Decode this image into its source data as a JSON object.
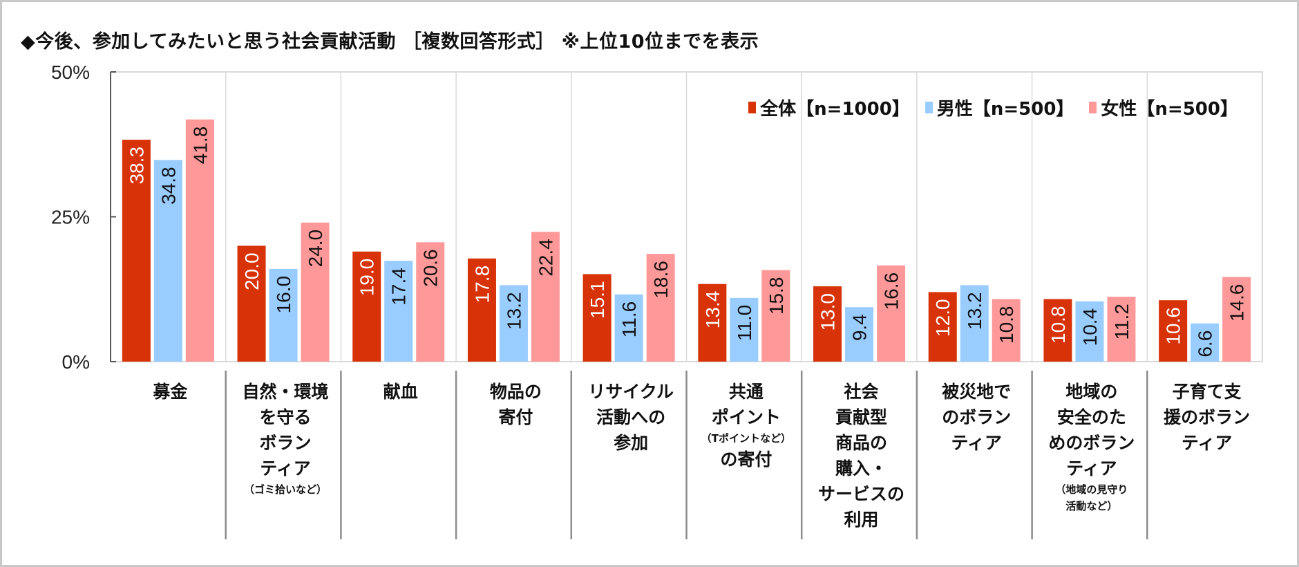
{
  "title": "◆今後、参加してみたいと思う社会貢献活動 ［複数回答形式］ ※上位10位までを表示",
  "colors": {
    "all": "#d83208",
    "male": "#99ccff",
    "female": "#ff9999"
  },
  "chart_data": {
    "type": "bar",
    "title": "◆今後、参加してみたいと思う社会貢献活動 ［複数回答形式］ ※上位10位までを表示",
    "xlabel": "",
    "ylabel": "",
    "ylim": [
      0,
      50
    ],
    "yticks": [
      0,
      25,
      50
    ],
    "ytick_labels": [
      "0%",
      "25%",
      "50%"
    ],
    "grid": "vertical category separators",
    "legend_position": "top-right",
    "categories": [
      {
        "lines": [
          "募金"
        ],
        "note": []
      },
      {
        "lines": [
          "自然・環境",
          "を守る",
          "ボラン",
          "ティア"
        ],
        "note": [
          "（ゴミ拾いなど）"
        ]
      },
      {
        "lines": [
          "献血"
        ],
        "note": []
      },
      {
        "lines": [
          "物品の",
          "寄付"
        ],
        "note": []
      },
      {
        "lines": [
          "リサイクル",
          "活動への",
          "参加"
        ],
        "note": []
      },
      {
        "lines": [
          "共通",
          "ポイント"
        ],
        "note": [
          "（Tポイントなど）"
        ],
        "after": [
          "の寄付"
        ]
      },
      {
        "lines": [
          "社会",
          "貢献型",
          "商品の",
          "購入・",
          "サービスの",
          "利用"
        ],
        "note": []
      },
      {
        "lines": [
          "被災地で",
          "のボラン",
          "ティア"
        ],
        "note": []
      },
      {
        "lines": [
          "地域の",
          "安全のた",
          "めのボラン",
          "ティア"
        ],
        "note": [
          "（地域の見守り",
          "活動など）"
        ]
      },
      {
        "lines": [
          "子育て支",
          "援のボラン",
          "ティア"
        ],
        "note": []
      }
    ],
    "series": [
      {
        "name": "全体【n=1000】",
        "key": "all",
        "values": [
          38.3,
          20.0,
          19.0,
          17.8,
          15.1,
          13.4,
          13.0,
          12.0,
          10.8,
          10.6
        ],
        "labels": [
          "38.3",
          "20.0",
          "19.0",
          "17.8",
          "15.1",
          "13.4",
          "13.0",
          "12.0",
          "10.8",
          "10.6"
        ]
      },
      {
        "name": "男性【n=500】",
        "key": "male",
        "values": [
          34.8,
          16.0,
          17.4,
          13.2,
          11.6,
          11.0,
          9.4,
          13.2,
          10.4,
          6.6
        ],
        "labels": [
          "34.8",
          "16.0",
          "17.4",
          "13.2",
          "11.6",
          "11.0",
          "9.4",
          "13.2",
          "10.4",
          "6.6"
        ]
      },
      {
        "name": "女性【n=500】",
        "key": "female",
        "values": [
          41.8,
          24.0,
          20.6,
          22.4,
          18.6,
          15.8,
          16.6,
          10.8,
          11.2,
          14.6
        ],
        "labels": [
          "41.8",
          "24.0",
          "20.6",
          "22.4",
          "18.6",
          "15.8",
          "16.6",
          "10.8",
          "11.2",
          "14.6"
        ]
      }
    ]
  }
}
